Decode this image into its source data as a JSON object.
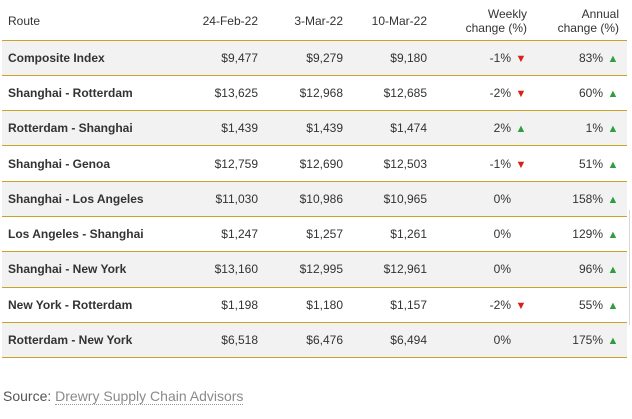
{
  "table": {
    "headers": {
      "route": "Route",
      "d1": "24-Feb-22",
      "d2": "3-Mar-22",
      "d3": "10-Mar-22",
      "weekly_line1": "Weekly",
      "weekly_line2": "change (%)",
      "annual_line1": "Annual",
      "annual_line2": "change (%)"
    },
    "rows": [
      {
        "route": "Composite Index",
        "d1": "$9,477",
        "d2": "$9,279",
        "d3": "$9,180",
        "weekly": "-1%",
        "weekly_dir": "down",
        "annual": "83%",
        "annual_dir": "up"
      },
      {
        "route": "Shanghai - Rotterdam",
        "d1": "$13,625",
        "d2": "$12,968",
        "d3": "$12,685",
        "weekly": "-2%",
        "weekly_dir": "down",
        "annual": "60%",
        "annual_dir": "up"
      },
      {
        "route": "Rotterdam - Shanghai",
        "d1": "$1,439",
        "d2": "$1,439",
        "d3": "$1,474",
        "weekly": "2%",
        "weekly_dir": "up",
        "annual": "1%",
        "annual_dir": "up"
      },
      {
        "route": "Shanghai - Genoa",
        "d1": "$12,759",
        "d2": "$12,690",
        "d3": "$12,503",
        "weekly": "-1%",
        "weekly_dir": "down",
        "annual": "51%",
        "annual_dir": "up"
      },
      {
        "route": "Shanghai - Los Angeles",
        "d1": "$11,030",
        "d2": "$10,986",
        "d3": "$10,965",
        "weekly": "0%",
        "weekly_dir": "none",
        "annual": "158%",
        "annual_dir": "up"
      },
      {
        "route": "Los Angeles - Shanghai",
        "d1": "$1,247",
        "d2": "$1,257",
        "d3": "$1,261",
        "weekly": "0%",
        "weekly_dir": "none",
        "annual": "129%",
        "annual_dir": "up"
      },
      {
        "route": "Shanghai - New York",
        "d1": "$13,160",
        "d2": "$12,995",
        "d3": "$12,961",
        "weekly": "0%",
        "weekly_dir": "none",
        "annual": "96%",
        "annual_dir": "up"
      },
      {
        "route": "New York - Rotterdam",
        "d1": "$1,198",
        "d2": "$1,180",
        "d3": "$1,157",
        "weekly": "-2%",
        "weekly_dir": "down",
        "annual": "55%",
        "annual_dir": "up"
      },
      {
        "route": "Rotterdam - New York",
        "d1": "$6,518",
        "d2": "$6,476",
        "d3": "$6,494",
        "weekly": "0%",
        "weekly_dir": "none",
        "annual": "175%",
        "annual_dir": "up"
      }
    ]
  },
  "source": {
    "label": "Source:",
    "link_text": "Drewry Supply Chain Advisors"
  },
  "colors": {
    "up_arrow": "#2e9e3e",
    "down_arrow": "#d9211b",
    "row_divider": "#c9a227",
    "stripe": "#f2f2f2"
  },
  "icons": {
    "up": "triangle-up-icon",
    "down": "triangle-down-icon"
  }
}
